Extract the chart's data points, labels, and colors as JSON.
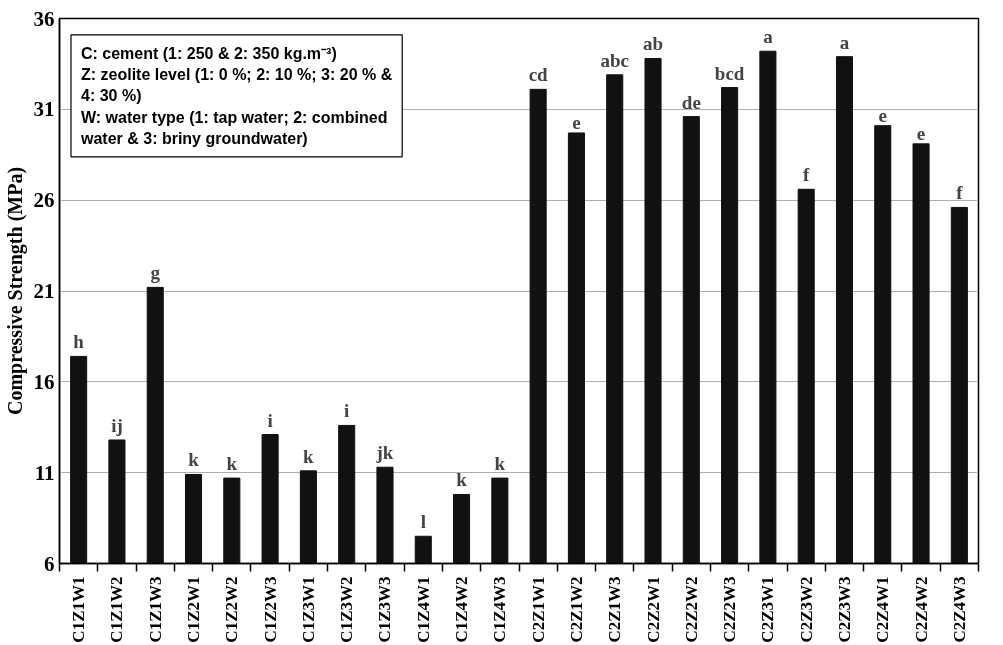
{
  "chart_data": {
    "type": "bar",
    "ylabel": "Compressive Strength (MPa)",
    "categories": [
      "C1Z1W1",
      "C1Z1W2",
      "C1Z1W3",
      "C1Z2W1",
      "C1Z2W2",
      "C1Z2W3",
      "C1Z3W1",
      "C1Z3W2",
      "C1Z3W3",
      "C1Z4W1",
      "C1Z4W2",
      "C1Z4W3",
      "C2Z1W1",
      "C2Z1W2",
      "C2Z1W3",
      "C2Z2W1",
      "C2Z2W2",
      "C2Z2W3",
      "C2Z3W1",
      "C2Z3W2",
      "C2Z3W3",
      "C2Z4W1",
      "C2Z4W2",
      "C2Z4W3"
    ],
    "values": [
      17.4,
      12.8,
      21.2,
      10.9,
      10.7,
      13.1,
      11.1,
      13.6,
      11.3,
      7.5,
      9.8,
      10.7,
      32.1,
      29.7,
      32.9,
      33.8,
      30.6,
      32.2,
      34.2,
      26.6,
      33.9,
      30.1,
      29.1,
      25.6
    ],
    "value_labels": [
      "h",
      "ij",
      "g",
      "k",
      "k",
      "i",
      "k",
      "i",
      "jk",
      "l",
      "k",
      "k",
      "cd",
      "e",
      "abc",
      "ab",
      "de",
      "bcd",
      "a",
      "f",
      "a",
      "e",
      "e",
      "f"
    ],
    "color": "#111111",
    "ylim": [
      6,
      36
    ],
    "yticks": [
      6,
      11,
      16,
      21,
      26,
      31,
      36
    ],
    "grid": "y",
    "annotations": [
      "C: cement (1: 250 & 2: 350 kg.m⁻³)",
      "Z: zeolite level (1: 0 %; 2: 10 %; 3: 20 % & 4: 30 %)",
      "W: water type (1: tap water; 2: combined water & 3: briny groundwater)"
    ]
  }
}
